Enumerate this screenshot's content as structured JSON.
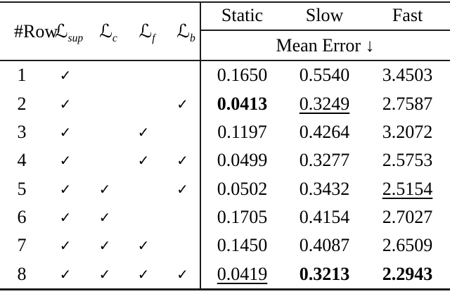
{
  "table": {
    "left_header": {
      "row_label": "#Row",
      "loss_columns": [
        {
          "symbol": "ℒ",
          "subscript": "sup"
        },
        {
          "symbol": "ℒ",
          "subscript": "c"
        },
        {
          "symbol": "ℒ",
          "subscript": "f"
        },
        {
          "symbol": "ℒ",
          "subscript": "b"
        }
      ]
    },
    "right_header": {
      "columns": [
        "Static",
        "Slow",
        "Fast"
      ],
      "subheader": "Mean Error ↓"
    },
    "rows": [
      {
        "num": "1",
        "sup": "✓",
        "c": "",
        "f": "",
        "b": "",
        "static": "0.1650",
        "slow": "0.5540",
        "fast": "3.4503"
      },
      {
        "num": "2",
        "sup": "✓",
        "c": "",
        "f": "",
        "b": "✓",
        "static": "0.0413",
        "slow": "0.3249",
        "fast": "2.7587"
      },
      {
        "num": "3",
        "sup": "✓",
        "c": "",
        "f": "✓",
        "b": "",
        "static": "0.1197",
        "slow": "0.4264",
        "fast": "3.2072"
      },
      {
        "num": "4",
        "sup": "✓",
        "c": "",
        "f": "✓",
        "b": "✓",
        "static": "0.0499",
        "slow": "0.3277",
        "fast": "2.5753"
      },
      {
        "num": "5",
        "sup": "✓",
        "c": "✓",
        "f": "",
        "b": "✓",
        "static": "0.0502",
        "slow": "0.3432",
        "fast": "2.5154"
      },
      {
        "num": "6",
        "sup": "✓",
        "c": "✓",
        "f": "",
        "b": "",
        "static": "0.1705",
        "slow": "0.4154",
        "fast": "2.7027"
      },
      {
        "num": "7",
        "sup": "✓",
        "c": "✓",
        "f": "✓",
        "b": "",
        "static": "0.1450",
        "slow": "0.4087",
        "fast": "2.6509"
      },
      {
        "num": "8",
        "sup": "✓",
        "c": "✓",
        "f": "✓",
        "b": "✓",
        "static": "0.0419",
        "slow": "0.3213",
        "fast": "2.2943"
      }
    ]
  }
}
